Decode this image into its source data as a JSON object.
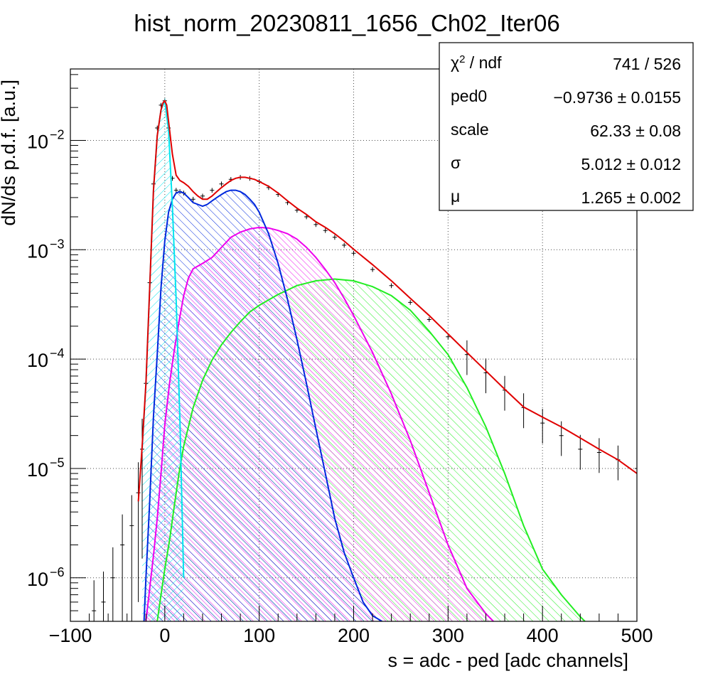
{
  "chart_data": {
    "type": "line",
    "title": "hist_norm_20230811_1656_Ch02_Iter06",
    "xlabel": "s = adc - ped [adc channels]",
    "ylabel": "dN/ds p.d.f. [a.u.]",
    "xlim": [
      -100,
      500
    ],
    "ylim": [
      4e-07,
      0.045
    ],
    "yscale": "log",
    "grid": true,
    "x_ticks": [
      -100,
      0,
      100,
      200,
      300,
      400,
      500
    ],
    "x_tick_labels": [
      "−100",
      "0",
      "100",
      "200",
      "300",
      "400",
      "500"
    ],
    "y_ticks": [
      1e-06,
      1e-05,
      0.0001,
      0.001,
      0.01
    ],
    "y_tick_labels": [
      {
        "base": "10",
        "exp": "−6"
      },
      {
        "base": "10",
        "exp": "−5"
      },
      {
        "base": "10",
        "exp": "−4"
      },
      {
        "base": "10",
        "exp": "−3"
      },
      {
        "base": "10",
        "exp": "−2"
      }
    ],
    "series": [
      {
        "kind": "histogram",
        "color": "#000000",
        "x": [
          -75,
          -65,
          -55,
          -45,
          -35,
          -28,
          -24,
          -20,
          -16,
          -12,
          -8,
          -4,
          0,
          4,
          8,
          12,
          16,
          20,
          30,
          40,
          50,
          60,
          70,
          80,
          90,
          100,
          110,
          120,
          130,
          140,
          150,
          160,
          170,
          180,
          190,
          200,
          220,
          240,
          260,
          280,
          300,
          320,
          340,
          360,
          380,
          400,
          420,
          440,
          460,
          480,
          500
        ],
        "y": [
          5e-07,
          6e-07,
          1e-06,
          2e-06,
          3e-06,
          6e-06,
          1.5e-05,
          6e-05,
          0.0005,
          0.004,
          0.013,
          0.021,
          0.023,
          0.013,
          0.0045,
          0.0035,
          0.0034,
          0.0033,
          0.0029,
          0.0031,
          0.0035,
          0.004,
          0.0044,
          0.0046,
          0.0045,
          0.0042,
          0.0037,
          0.0032,
          0.0027,
          0.0023,
          0.002,
          0.0017,
          0.0015,
          0.0013,
          0.0011,
          0.00093,
          0.00066,
          0.00047,
          0.00033,
          0.00023,
          0.00016,
          0.00011,
          7.5e-05,
          5.2e-05,
          3.6e-05,
          2.6e-05,
          2e-05,
          1.5e-05,
          1.4e-05,
          1.2e-05,
          1e-05
        ]
      },
      {
        "kind": "fit",
        "color": "#e00000",
        "x": [
          -28,
          -24,
          -20,
          -16,
          -12,
          -8,
          -4,
          -2,
          0,
          2,
          4,
          8,
          12,
          16,
          20,
          25,
          30,
          35,
          40,
          45,
          50,
          55,
          60,
          65,
          70,
          75,
          80,
          85,
          90,
          95,
          100,
          110,
          120,
          130,
          140,
          150,
          160,
          170,
          180,
          190,
          200,
          220,
          240,
          260,
          280,
          300,
          320,
          340,
          360,
          380,
          400,
          420,
          440,
          460,
          480,
          500
        ],
        "y": [
          5e-06,
          1.6e-05,
          6e-05,
          0.00045,
          0.0035,
          0.011,
          0.019,
          0.022,
          0.023,
          0.021,
          0.015,
          0.0075,
          0.0048,
          0.0043,
          0.0041,
          0.0038,
          0.0034,
          0.0031,
          0.0029,
          0.0029,
          0.0031,
          0.0034,
          0.0037,
          0.004,
          0.0043,
          0.0045,
          0.0046,
          0.0046,
          0.0045,
          0.0044,
          0.0042,
          0.0038,
          0.0033,
          0.0028,
          0.0024,
          0.0021,
          0.0018,
          0.0016,
          0.0014,
          0.0012,
          0.00101,
          0.00073,
          0.00052,
          0.00036,
          0.00025,
          0.00017,
          0.000115,
          7.8e-05,
          5.3e-05,
          3.65e-05,
          2.95e-05,
          2.4e-05,
          1.9e-05,
          1.5e-05,
          1.2e-05,
          9e-06
        ]
      },
      {
        "kind": "component",
        "color": "#00e5ee",
        "hatch": true,
        "x": [
          -24,
          -20,
          -16,
          -12,
          -8,
          -4,
          0,
          4,
          8,
          12,
          16,
          20
        ],
        "y": [
          1.5e-05,
          6e-05,
          0.00045,
          0.0035,
          0.011,
          0.019,
          0.023,
          0.0125,
          0.0025,
          0.00035,
          2.8e-05,
          1e-06
        ]
      },
      {
        "kind": "component",
        "color": "#0028dd",
        "hatch": true,
        "x": [
          -22,
          -20,
          -16,
          -12,
          -8,
          -4,
          0,
          4,
          8,
          12,
          16,
          20,
          25,
          30,
          35,
          40,
          45,
          50,
          55,
          60,
          65,
          70,
          75,
          80,
          85,
          90,
          95,
          100,
          110,
          120,
          130,
          140,
          150,
          160,
          170,
          180,
          190,
          200,
          210,
          220,
          230
        ],
        "y": [
          4e-07,
          1e-06,
          5e-06,
          3e-05,
          0.00011,
          0.00045,
          0.0012,
          0.0022,
          0.0029,
          0.0033,
          0.0034,
          0.0033,
          0.003,
          0.0027,
          0.0026,
          0.0025,
          0.0026,
          0.0028,
          0.003,
          0.0032,
          0.0034,
          0.0035,
          0.0035,
          0.0034,
          0.0032,
          0.0029,
          0.0026,
          0.0022,
          0.0014,
          0.00075,
          0.00035,
          0.00015,
          6e-05,
          2.3e-05,
          9e-06,
          3.5e-06,
          1.7e-06,
          1e-06,
          6e-07,
          4.5e-07,
          4e-07
        ]
      },
      {
        "kind": "component",
        "color": "#ee00ee",
        "hatch": true,
        "x": [
          -20,
          -16,
          -12,
          -8,
          -4,
          0,
          5,
          10,
          15,
          20,
          25,
          30,
          40,
          50,
          60,
          70,
          80,
          90,
          100,
          110,
          120,
          130,
          140,
          150,
          160,
          170,
          180,
          190,
          200,
          220,
          240,
          260,
          280,
          300,
          320,
          340,
          348
        ],
        "y": [
          4e-07,
          8e-07,
          1.6e-06,
          3.5e-06,
          9e-06,
          2.5e-05,
          6e-05,
          0.00012,
          0.00022,
          0.00038,
          0.00055,
          0.00067,
          0.00075,
          0.00085,
          0.00105,
          0.0013,
          0.00145,
          0.00155,
          0.0016,
          0.00158,
          0.0015,
          0.0014,
          0.00125,
          0.00105,
          0.00085,
          0.00066,
          0.0005,
          0.00036,
          0.00025,
          0.000115,
          4.8e-05,
          1.8e-05,
          6e-06,
          2e-06,
          8e-07,
          4.7e-07,
          4e-07
        ]
      },
      {
        "kind": "component",
        "color": "#22ee22",
        "hatch": true,
        "x": [
          -8,
          -4,
          0,
          5,
          10,
          15,
          20,
          30,
          40,
          50,
          60,
          70,
          80,
          90,
          100,
          120,
          140,
          160,
          180,
          200,
          220,
          240,
          260,
          280,
          300,
          320,
          340,
          360,
          380,
          400,
          420,
          440,
          445
        ],
        "y": [
          4e-07,
          7e-07,
          1.2e-06,
          2.2e-06,
          4.5e-06,
          9e-06,
          1.6e-05,
          3.6e-05,
          6.4e-05,
          9.8e-05,
          0.000135,
          0.000175,
          0.00022,
          0.00027,
          0.00031,
          0.00039,
          0.00047,
          0.00052,
          0.00054,
          0.00052,
          0.00046,
          0.00038,
          0.00028,
          0.00018,
          0.00011,
          5.5e-05,
          2.4e-05,
          9e-06,
          3e-06,
          1.2e-06,
          7e-07,
          4.4e-07,
          4e-07
        ]
      }
    ],
    "legend_placement": "top-right"
  },
  "stats_box": {
    "rows": [
      {
        "label_html": "χ<tspan baseline-shift='super' font-size='15'>2</tspan> / ndf",
        "label": "χ2 / ndf",
        "value": "741 / 526"
      },
      {
        "label": "ped0",
        "value": "−0.9736 ± 0.0155"
      },
      {
        "label": "scale",
        "value": "62.33 ± 0.08"
      },
      {
        "label": "σ",
        "value": "5.012 ± 0.012"
      },
      {
        "label": "μ",
        "value": "1.265 ± 0.002"
      }
    ]
  }
}
